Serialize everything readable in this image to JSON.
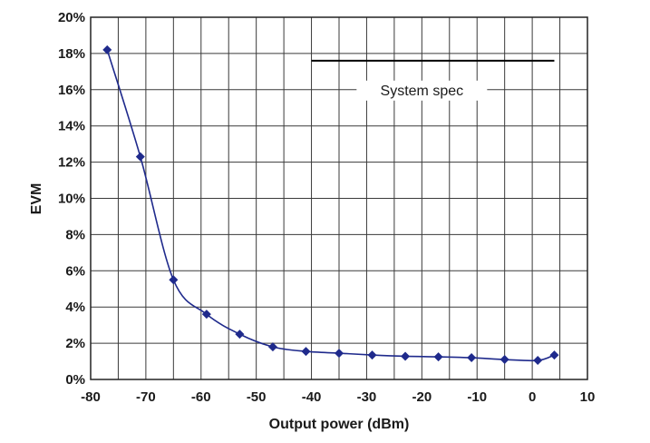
{
  "chart_data": {
    "type": "line",
    "title": "",
    "xlabel": "Output power (dBm)",
    "ylabel": "EVM",
    "xlim": [
      -80,
      10
    ],
    "ylim": [
      0,
      20
    ],
    "x_ticks": [
      -80,
      -70,
      -60,
      -50,
      -40,
      -30,
      -20,
      -10,
      0,
      10
    ],
    "x_tick_labels": [
      "-80",
      "-70",
      "-60",
      "-50",
      "-40",
      "-30",
      "-20",
      "-10",
      "0",
      "10"
    ],
    "y_ticks": [
      0,
      2,
      4,
      6,
      8,
      10,
      12,
      14,
      16,
      18,
      20
    ],
    "y_tick_labels": [
      "0%",
      "2%",
      "4%",
      "6%",
      "8%",
      "10%",
      "12%",
      "14%",
      "16%",
      "18%",
      "20%"
    ],
    "y_unit": "%",
    "x_grid_step": 5,
    "y_grid_step": 2,
    "grid": true,
    "series": [
      {
        "color": "#1f2a8c",
        "marker": "diamond",
        "points": [
          {
            "x": -77,
            "y": 18.2
          },
          {
            "x": -71,
            "y": 12.3
          },
          {
            "x": -65,
            "y": 5.5
          },
          {
            "x": -59,
            "y": 3.6
          },
          {
            "x": -53,
            "y": 2.5
          },
          {
            "x": -47,
            "y": 1.8
          },
          {
            "x": -41,
            "y": 1.55
          },
          {
            "x": -35,
            "y": 1.45
          },
          {
            "x": -29,
            "y": 1.35
          },
          {
            "x": -23,
            "y": 1.28
          },
          {
            "x": -17,
            "y": 1.25
          },
          {
            "x": -11,
            "y": 1.2
          },
          {
            "x": -5,
            "y": 1.1
          },
          {
            "x": 1,
            "y": 1.05
          },
          {
            "x": 4,
            "y": 1.35
          }
        ]
      }
    ],
    "reference_line": {
      "label": "System spec",
      "y": 17.6,
      "x_start": -40,
      "x_end": 4,
      "color": "#000000"
    }
  }
}
